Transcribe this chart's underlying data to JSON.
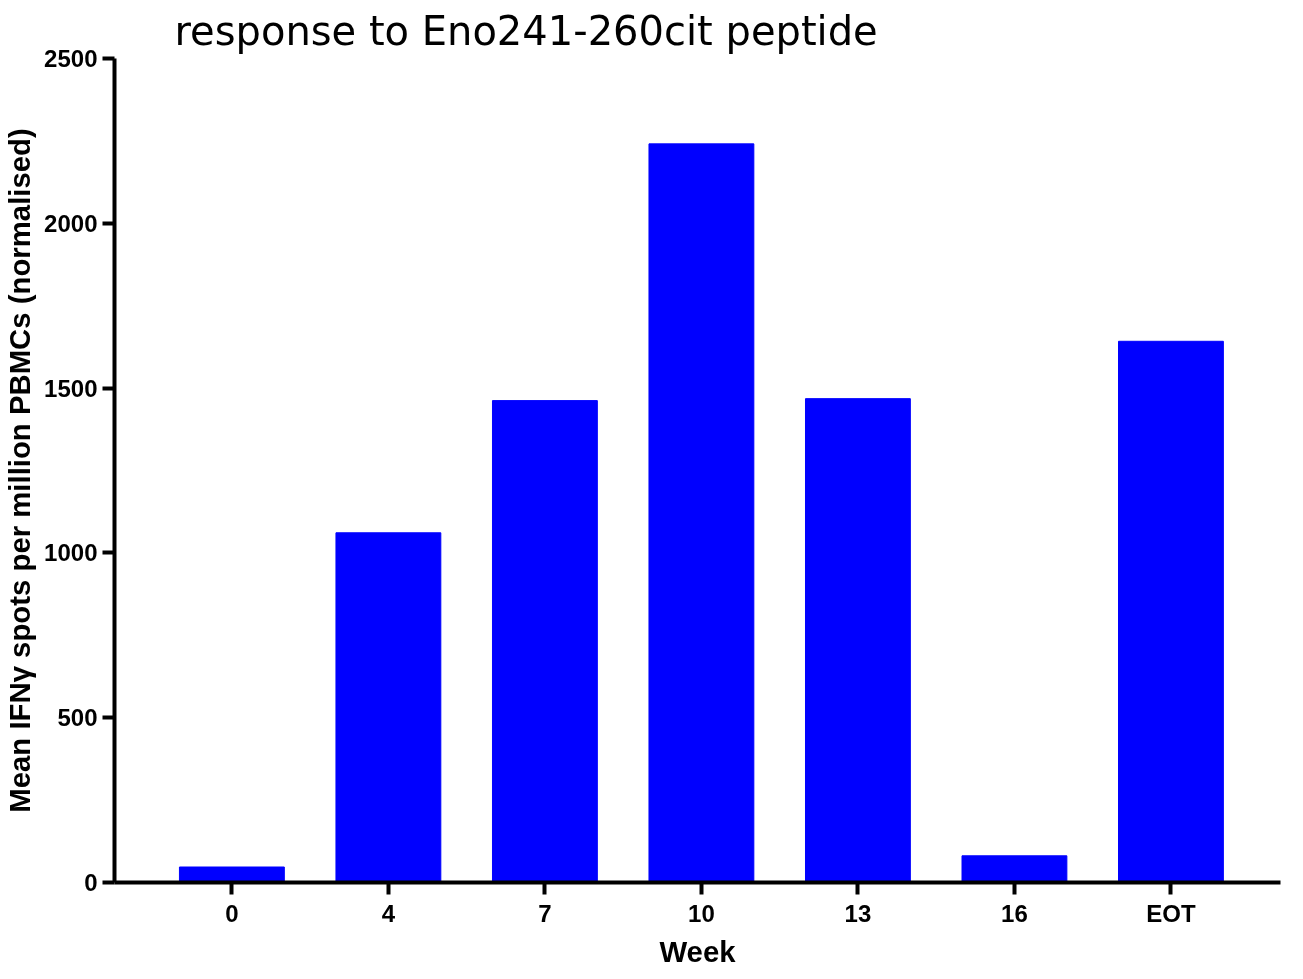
{
  "chart_data": {
    "type": "bar",
    "title": "response to Eno241-260cit peptide",
    "xlabel": "Week",
    "ylabel": "Mean IFNγ spots per million PBMCs (normalised)",
    "categories": [
      "0",
      "4",
      "7",
      "10",
      "13",
      "16",
      "EOT"
    ],
    "values": [
      47,
      1061,
      1462,
      2241,
      1468,
      81,
      1642
    ],
    "color": "#0000ff",
    "ylim": [
      0,
      2500
    ],
    "yticks": [
      0,
      500,
      1000,
      1500,
      2000,
      2500
    ],
    "grid": false
  }
}
